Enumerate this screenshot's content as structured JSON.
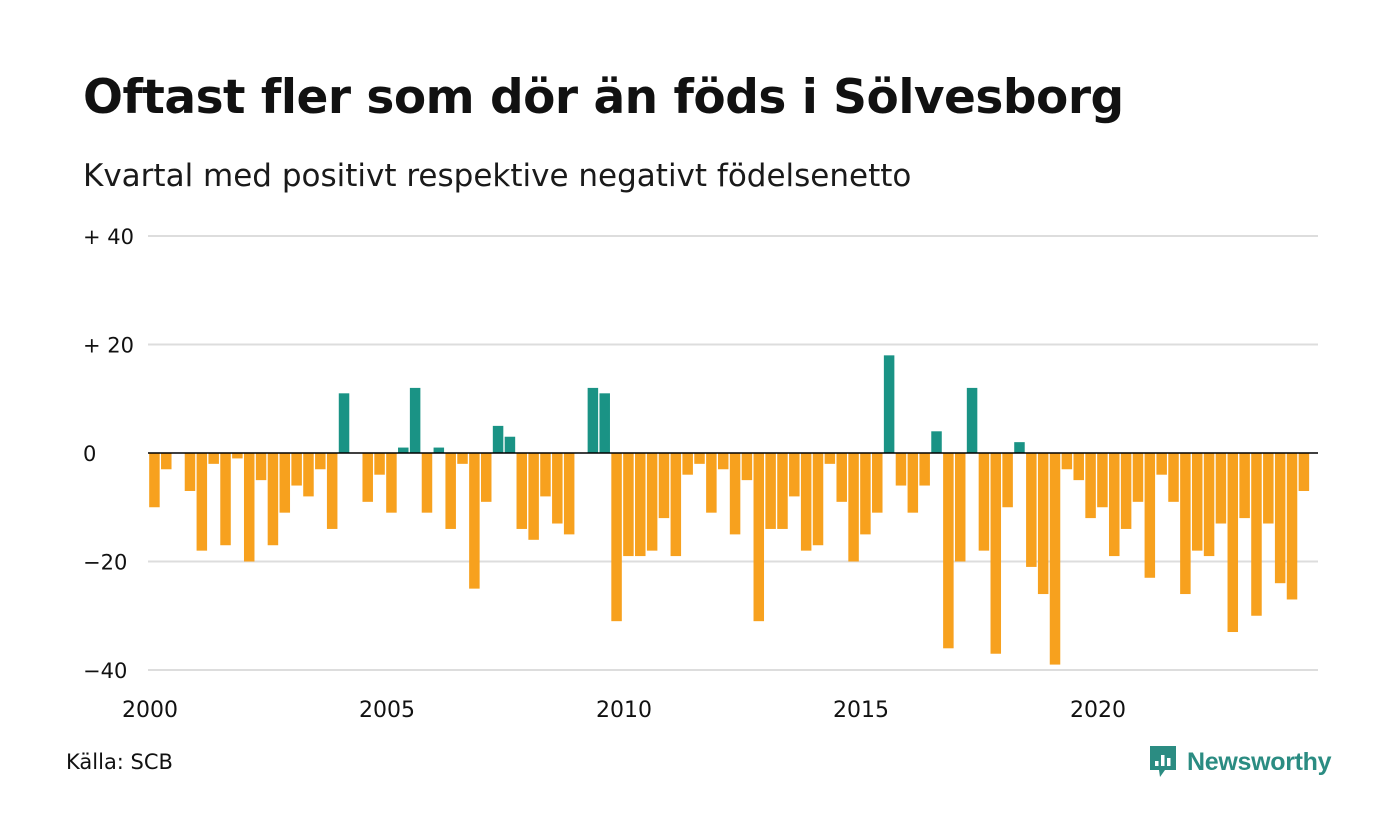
{
  "title": "Oftast fler som dör än föds i Sölvesborg",
  "subtitle": "Kvartal med positivt respektive negativt födelsenetto",
  "source": "Källa: SCB",
  "brand": {
    "name": "Newsworthy",
    "icon": "newsworthy-chart-bubble-icon"
  },
  "colors": {
    "positive": "#1a9385",
    "negative": "#f7a11e",
    "grid": "#dddddd",
    "zero_line": "#000000",
    "brand": "#2b8c82"
  },
  "chart_data": {
    "type": "bar",
    "title": "Oftast fler som dör än föds i Sölvesborg",
    "subtitle": "Kvartal med positivt respektive negativt födelsenetto",
    "xlabel": "",
    "ylabel": "",
    "start": "2000 Q1",
    "frequency": "quarter",
    "ylim": [
      -40,
      40
    ],
    "yticks": [
      40,
      20,
      0,
      -20,
      -40
    ],
    "ytick_labels": [
      "+ 40",
      "+ 20",
      "0",
      "−20",
      "−40"
    ],
    "xticks": [
      "2000",
      "2005",
      "2010",
      "2015",
      "2020"
    ],
    "grid": true,
    "legend": "none",
    "values": [
      -10,
      -3,
      0,
      -7,
      -18,
      -2,
      -17,
      -1,
      -20,
      -5,
      -17,
      -11,
      -6,
      -8,
      -3,
      -14,
      11,
      0,
      -9,
      -4,
      -11,
      1,
      12,
      -11,
      1,
      -14,
      -2,
      -25,
      -9,
      5,
      3,
      -14,
      -16,
      -8,
      -13,
      -15,
      0,
      12,
      11,
      -31,
      -19,
      -19,
      -18,
      -12,
      -19,
      -4,
      -2,
      -11,
      -3,
      -15,
      -5,
      -31,
      -14,
      -14,
      -8,
      -18,
      -17,
      -2,
      -9,
      -20,
      -15,
      -11,
      18,
      -6,
      -11,
      -6,
      4,
      -36,
      -20,
      12,
      -18,
      -37,
      -10,
      2,
      -21,
      -26,
      -39,
      -3,
      -5,
      -12,
      -10,
      -19,
      -14,
      -9,
      -23,
      -4,
      -9,
      -26,
      -18,
      -19,
      -13,
      -33,
      -12,
      -30,
      -13,
      -24,
      -27,
      -7
    ]
  }
}
